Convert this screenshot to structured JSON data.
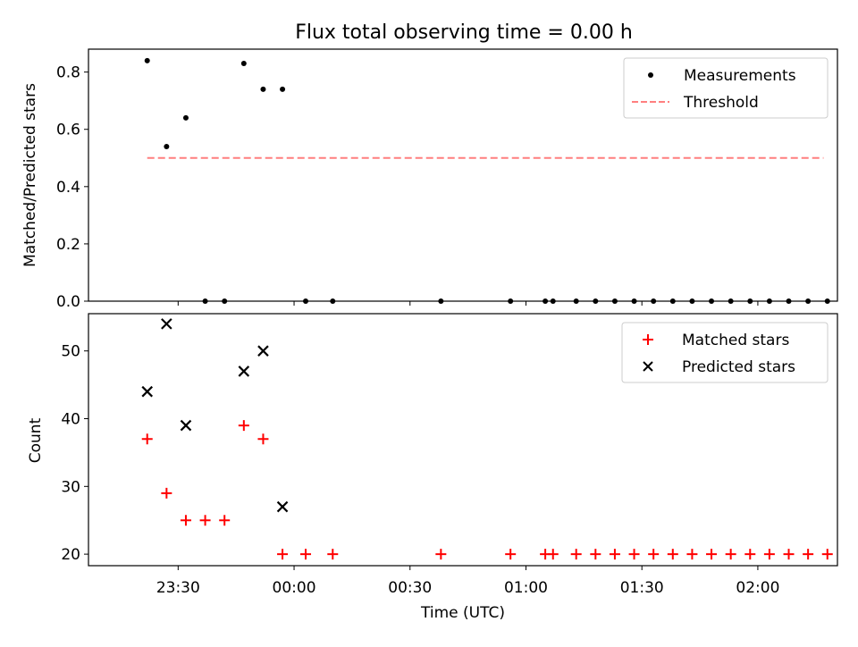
{
  "chart_data": {
    "title": "Flux total observing time = 0.00 h",
    "xlabel": "Time (UTC)",
    "x_ticks": [
      "23:30",
      "00:00",
      "00:30",
      "01:00",
      "01:30",
      "02:00"
    ],
    "panels": [
      {
        "type": "scatter",
        "ylabel": "Matched/Predicted stars",
        "ylim": [
          0.0,
          0.88
        ],
        "y_ticks": [
          "0.0",
          "0.2",
          "0.4",
          "0.6",
          "0.8"
        ],
        "legend_position": "top-right",
        "series": [
          {
            "name": "Measurements",
            "marker": "dot",
            "color": "#000000",
            "points": [
              [
                "23:22",
                0.84
              ],
              [
                "23:27",
                0.54
              ],
              [
                "23:32",
                0.64
              ],
              [
                "23:37",
                0.0
              ],
              [
                "23:42",
                0.0
              ],
              [
                "23:47",
                0.83
              ],
              [
                "23:52",
                0.74
              ],
              [
                "23:57",
                0.74
              ],
              [
                "00:03",
                0.0
              ],
              [
                "00:10",
                0.0
              ],
              [
                "00:38",
                0.0
              ],
              [
                "00:56",
                0.0
              ],
              [
                "01:05",
                0.0
              ],
              [
                "01:07",
                0.0
              ],
              [
                "01:13",
                0.0
              ],
              [
                "01:18",
                0.0
              ],
              [
                "01:23",
                0.0
              ],
              [
                "01:28",
                0.0
              ],
              [
                "01:33",
                0.0
              ],
              [
                "01:38",
                0.0
              ],
              [
                "01:43",
                0.0
              ],
              [
                "01:48",
                0.0
              ],
              [
                "01:53",
                0.0
              ],
              [
                "01:58",
                0.0
              ],
              [
                "02:03",
                0.0
              ],
              [
                "02:08",
                0.0
              ],
              [
                "02:13",
                0.0
              ],
              [
                "02:18",
                0.0
              ]
            ]
          },
          {
            "name": "Threshold",
            "marker": "dashed-line",
            "color": "#ff7f7f",
            "points": [
              [
                "23:22",
                0.5
              ],
              [
                "02:17",
                0.5
              ]
            ]
          }
        ]
      },
      {
        "type": "scatter",
        "ylabel": "Count",
        "ylim": [
          18.3,
          55.5
        ],
        "y_ticks": [
          "20",
          "30",
          "40",
          "50"
        ],
        "legend_position": "top-right",
        "series": [
          {
            "name": "Matched stars",
            "marker": "plus",
            "color": "#ff0000",
            "points": [
              [
                "23:22",
                37
              ],
              [
                "23:27",
                29
              ],
              [
                "23:32",
                25
              ],
              [
                "23:37",
                25
              ],
              [
                "23:42",
                25
              ],
              [
                "23:47",
                39
              ],
              [
                "23:52",
                37
              ],
              [
                "23:57",
                20
              ],
              [
                "00:03",
                20
              ],
              [
                "00:10",
                20
              ],
              [
                "00:38",
                20
              ],
              [
                "00:56",
                20
              ],
              [
                "01:05",
                20
              ],
              [
                "01:07",
                20
              ],
              [
                "01:13",
                20
              ],
              [
                "01:18",
                20
              ],
              [
                "01:23",
                20
              ],
              [
                "01:28",
                20
              ],
              [
                "01:33",
                20
              ],
              [
                "01:38",
                20
              ],
              [
                "01:43",
                20
              ],
              [
                "01:48",
                20
              ],
              [
                "01:53",
                20
              ],
              [
                "01:58",
                20
              ],
              [
                "02:03",
                20
              ],
              [
                "02:08",
                20
              ],
              [
                "02:13",
                20
              ],
              [
                "02:18",
                20
              ]
            ]
          },
          {
            "name": "Predicted stars",
            "marker": "x",
            "color": "#000000",
            "points": [
              [
                "23:22",
                44
              ],
              [
                "23:27",
                54
              ],
              [
                "23:32",
                39
              ],
              [
                "23:47",
                47
              ],
              [
                "23:52",
                50
              ],
              [
                "23:57",
                27
              ]
            ]
          }
        ]
      }
    ]
  }
}
